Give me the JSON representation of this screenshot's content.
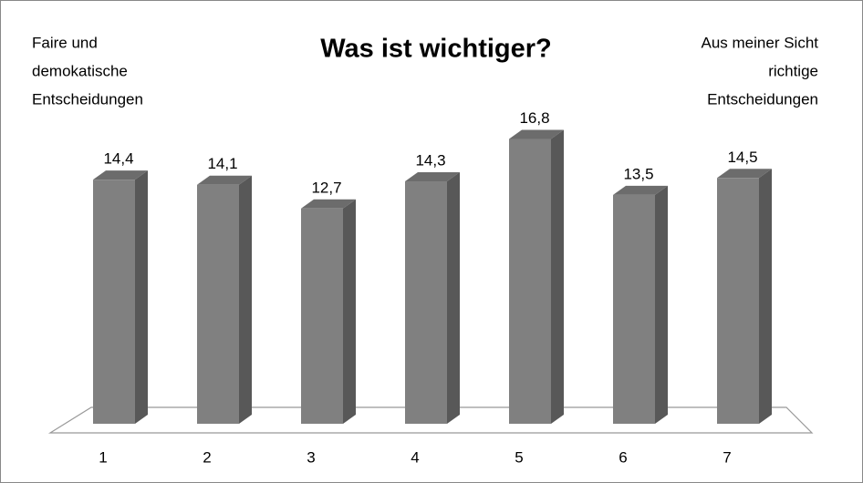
{
  "chart_data": {
    "type": "bar3d",
    "title": "Was ist wichtiger?",
    "annotations": [
      {
        "position": "left",
        "lines": [
          "Faire und",
          "demokatische",
          "Entscheidungen"
        ]
      },
      {
        "position": "right",
        "lines": [
          "Aus meiner Sicht",
          "richtige",
          "Entscheidungen"
        ]
      }
    ],
    "categories": [
      "1",
      "2",
      "3",
      "4",
      "5",
      "6",
      "7"
    ],
    "values": [
      14.4,
      14.1,
      12.7,
      14.3,
      16.8,
      13.5,
      14.5
    ],
    "value_labels": [
      "14,4",
      "14,1",
      "12,7",
      "14,3",
      "16,8",
      "13,5",
      "14,5"
    ],
    "color": "#808080"
  }
}
